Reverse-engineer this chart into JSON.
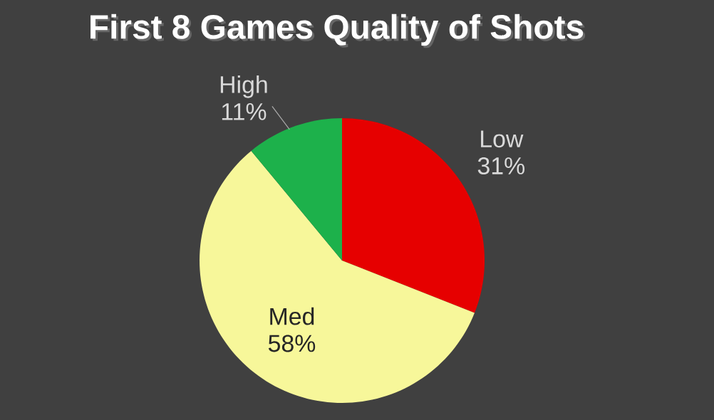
{
  "chart_data": {
    "type": "pie",
    "title": "First 8 Games Quality of Shots",
    "categories": [
      "Low",
      "Med",
      "High"
    ],
    "values": [
      31,
      58,
      11
    ],
    "colors": [
      "#e60000",
      "#f7f79a",
      "#1db14b"
    ],
    "value_labels": [
      "31%",
      "58%",
      "11%"
    ]
  }
}
